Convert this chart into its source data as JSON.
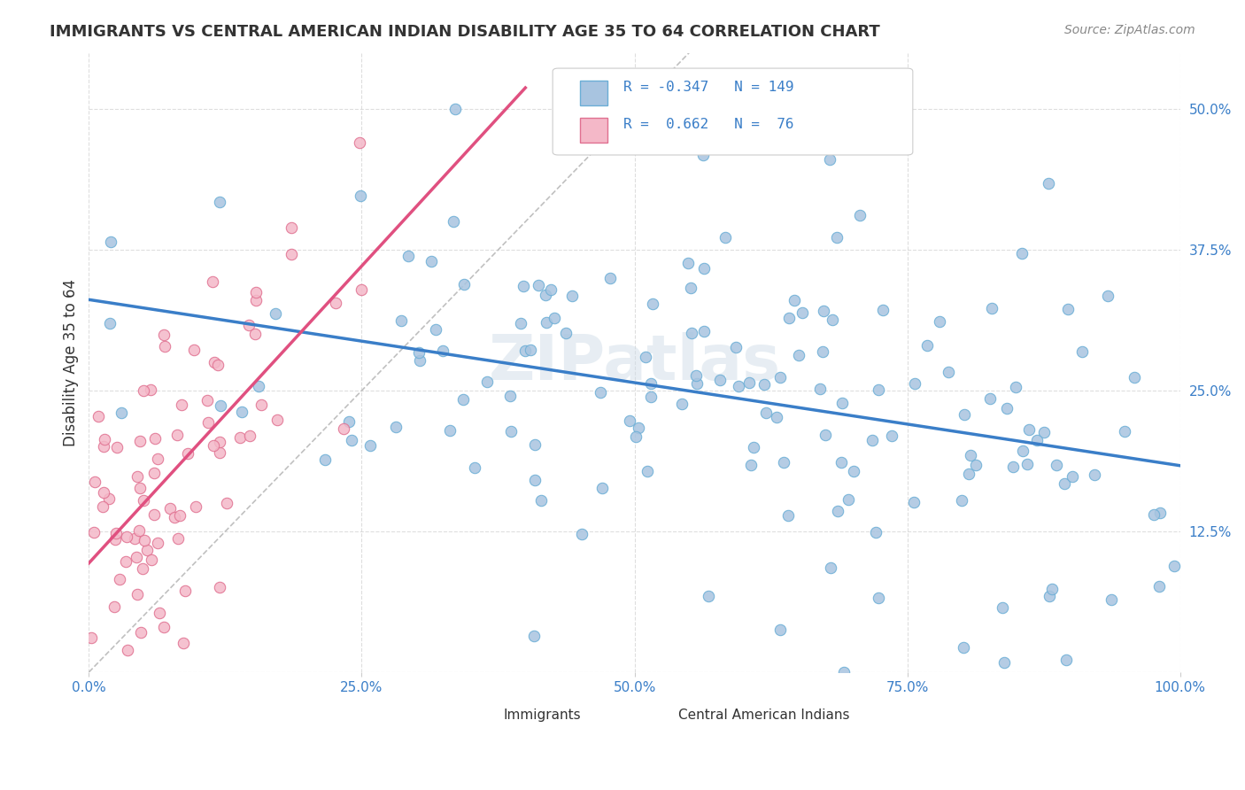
{
  "title": "IMMIGRANTS VS CENTRAL AMERICAN INDIAN DISABILITY AGE 35 TO 64 CORRELATION CHART",
  "source": "Source: ZipAtlas.com",
  "xlabel": "",
  "ylabel": "Disability Age 35 to 64",
  "xlim": [
    0.0,
    1.0
  ],
  "ylim": [
    0.0,
    0.55
  ],
  "x_ticks": [
    0.0,
    0.25,
    0.5,
    0.75,
    1.0
  ],
  "x_tick_labels": [
    "0.0%",
    "25.0%",
    "50.0%",
    "75.0%",
    "100.0%"
  ],
  "y_ticks": [
    0.0,
    0.125,
    0.25,
    0.375,
    0.5
  ],
  "y_tick_labels": [
    "",
    "12.5%",
    "25.0%",
    "37.5%",
    "50.0%"
  ],
  "watermark": "ZIPatlas",
  "legend_r1": "R = -0.347",
  "legend_n1": "N = 149",
  "legend_r2": "R =  0.662",
  "legend_n2": "N =  76",
  "immigrant_color": "#a8c4e0",
  "immigrant_edge_color": "#6baed6",
  "ca_indian_color": "#f4b8c8",
  "ca_indian_edge_color": "#e07090",
  "trend_blue": "#3a7ec8",
  "trend_pink": "#e05080",
  "trend_gray": "#b0b0b0",
  "background_color": "#ffffff",
  "grid_color": "#d0d0d0",
  "R_immigrants": -0.347,
  "N_immigrants": 149,
  "R_ca_indians": 0.662,
  "N_ca_indians": 76,
  "seed_immigrants": 42,
  "seed_ca_indians": 99
}
